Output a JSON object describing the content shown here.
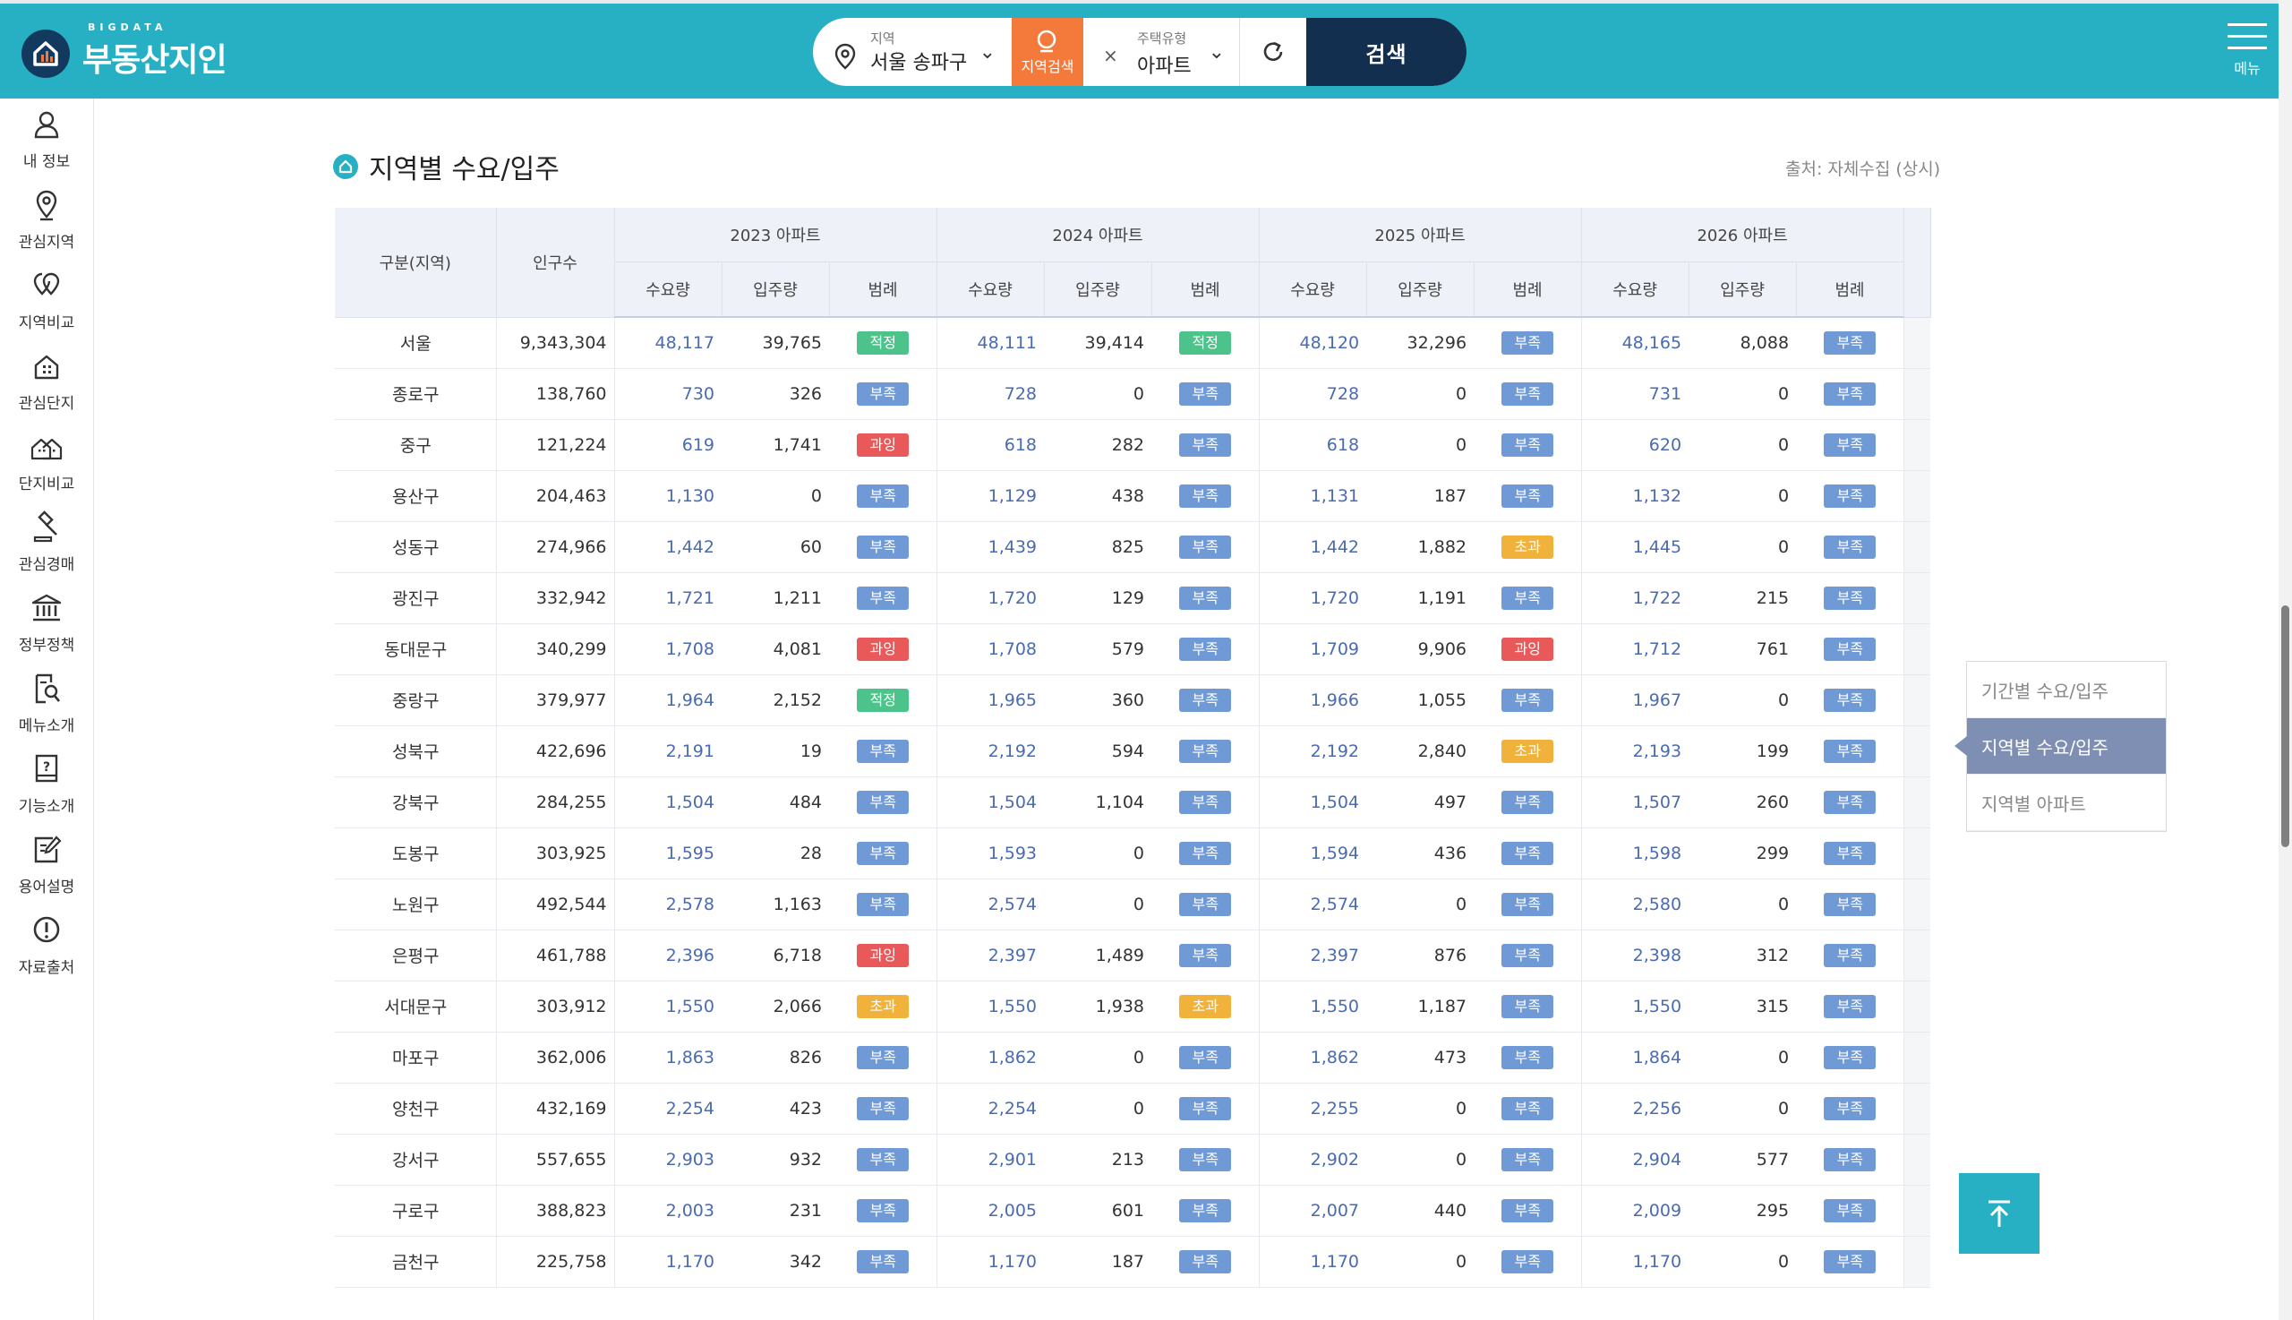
{
  "header": {
    "logo_small": "BIGDATA",
    "logo_main": "부동산지인",
    "search": {
      "region_label": "지역",
      "region_value": "서울 송파구",
      "region_button": "지역검색",
      "type_label": "주택유형",
      "type_value": "아파트",
      "submit_label": "검색"
    },
    "menu_label": "메뉴"
  },
  "sidebar": {
    "items": [
      {
        "label": "내 정보",
        "icon": "user-icon"
      },
      {
        "label": "관심지역",
        "icon": "location-pin-icon"
      },
      {
        "label": "지역비교",
        "icon": "compare-pins-icon"
      },
      {
        "label": "관심단지",
        "icon": "building-icon"
      },
      {
        "label": "단지비교",
        "icon": "buildings-compare-icon"
      },
      {
        "label": "관심경매",
        "icon": "gavel-icon"
      },
      {
        "label": "정부정책",
        "icon": "government-icon"
      },
      {
        "label": "메뉴소개",
        "icon": "document-search-icon"
      },
      {
        "label": "기능소개",
        "icon": "book-icon"
      },
      {
        "label": "용어설명",
        "icon": "edit-icon"
      },
      {
        "label": "자료출처",
        "icon": "info-icon"
      }
    ]
  },
  "page": {
    "title": "지역별 수요/입주",
    "source": "출처: 자체수집 (상시)"
  },
  "table": {
    "col_region": "구분(지역)",
    "col_population": "인구수",
    "years": [
      "2023 아파트",
      "2024 아파트",
      "2025 아파트",
      "2026 아파트"
    ],
    "sub_cols": [
      "수요량",
      "입주량",
      "범례"
    ],
    "rows": [
      {
        "region": "서울",
        "pop": "9,343,304",
        "y": [
          [
            "48,117",
            "39,765",
            "적정"
          ],
          [
            "48,111",
            "39,414",
            "적정"
          ],
          [
            "48,120",
            "32,296",
            "부족"
          ],
          [
            "48,165",
            "8,088",
            "부족"
          ]
        ]
      },
      {
        "region": "종로구",
        "pop": "138,760",
        "y": [
          [
            "730",
            "326",
            "부족"
          ],
          [
            "728",
            "0",
            "부족"
          ],
          [
            "728",
            "0",
            "부족"
          ],
          [
            "731",
            "0",
            "부족"
          ]
        ]
      },
      {
        "region": "중구",
        "pop": "121,224",
        "y": [
          [
            "619",
            "1,741",
            "과잉"
          ],
          [
            "618",
            "282",
            "부족"
          ],
          [
            "618",
            "0",
            "부족"
          ],
          [
            "620",
            "0",
            "부족"
          ]
        ]
      },
      {
        "region": "용산구",
        "pop": "204,463",
        "y": [
          [
            "1,130",
            "0",
            "부족"
          ],
          [
            "1,129",
            "438",
            "부족"
          ],
          [
            "1,131",
            "187",
            "부족"
          ],
          [
            "1,132",
            "0",
            "부족"
          ]
        ]
      },
      {
        "region": "성동구",
        "pop": "274,966",
        "y": [
          [
            "1,442",
            "60",
            "부족"
          ],
          [
            "1,439",
            "825",
            "부족"
          ],
          [
            "1,442",
            "1,882",
            "초과"
          ],
          [
            "1,445",
            "0",
            "부족"
          ]
        ]
      },
      {
        "region": "광진구",
        "pop": "332,942",
        "y": [
          [
            "1,721",
            "1,211",
            "부족"
          ],
          [
            "1,720",
            "129",
            "부족"
          ],
          [
            "1,720",
            "1,191",
            "부족"
          ],
          [
            "1,722",
            "215",
            "부족"
          ]
        ]
      },
      {
        "region": "동대문구",
        "pop": "340,299",
        "y": [
          [
            "1,708",
            "4,081",
            "과잉"
          ],
          [
            "1,708",
            "579",
            "부족"
          ],
          [
            "1,709",
            "9,906",
            "과잉"
          ],
          [
            "1,712",
            "761",
            "부족"
          ]
        ]
      },
      {
        "region": "중랑구",
        "pop": "379,977",
        "y": [
          [
            "1,964",
            "2,152",
            "적정"
          ],
          [
            "1,965",
            "360",
            "부족"
          ],
          [
            "1,966",
            "1,055",
            "부족"
          ],
          [
            "1,967",
            "0",
            "부족"
          ]
        ]
      },
      {
        "region": "성북구",
        "pop": "422,696",
        "y": [
          [
            "2,191",
            "19",
            "부족"
          ],
          [
            "2,192",
            "594",
            "부족"
          ],
          [
            "2,192",
            "2,840",
            "초과"
          ],
          [
            "2,193",
            "199",
            "부족"
          ]
        ]
      },
      {
        "region": "강북구",
        "pop": "284,255",
        "y": [
          [
            "1,504",
            "484",
            "부족"
          ],
          [
            "1,504",
            "1,104",
            "부족"
          ],
          [
            "1,504",
            "497",
            "부족"
          ],
          [
            "1,507",
            "260",
            "부족"
          ]
        ]
      },
      {
        "region": "도봉구",
        "pop": "303,925",
        "y": [
          [
            "1,595",
            "28",
            "부족"
          ],
          [
            "1,593",
            "0",
            "부족"
          ],
          [
            "1,594",
            "436",
            "부족"
          ],
          [
            "1,598",
            "299",
            "부족"
          ]
        ]
      },
      {
        "region": "노원구",
        "pop": "492,544",
        "y": [
          [
            "2,578",
            "1,163",
            "부족"
          ],
          [
            "2,574",
            "0",
            "부족"
          ],
          [
            "2,574",
            "0",
            "부족"
          ],
          [
            "2,580",
            "0",
            "부족"
          ]
        ]
      },
      {
        "region": "은평구",
        "pop": "461,788",
        "y": [
          [
            "2,396",
            "6,718",
            "과잉"
          ],
          [
            "2,397",
            "1,489",
            "부족"
          ],
          [
            "2,397",
            "876",
            "부족"
          ],
          [
            "2,398",
            "312",
            "부족"
          ]
        ]
      },
      {
        "region": "서대문구",
        "pop": "303,912",
        "y": [
          [
            "1,550",
            "2,066",
            "초과"
          ],
          [
            "1,550",
            "1,938",
            "초과"
          ],
          [
            "1,550",
            "1,187",
            "부족"
          ],
          [
            "1,550",
            "315",
            "부족"
          ]
        ]
      },
      {
        "region": "마포구",
        "pop": "362,006",
        "y": [
          [
            "1,863",
            "826",
            "부족"
          ],
          [
            "1,862",
            "0",
            "부족"
          ],
          [
            "1,862",
            "473",
            "부족"
          ],
          [
            "1,864",
            "0",
            "부족"
          ]
        ]
      },
      {
        "region": "양천구",
        "pop": "432,169",
        "y": [
          [
            "2,254",
            "423",
            "부족"
          ],
          [
            "2,254",
            "0",
            "부족"
          ],
          [
            "2,255",
            "0",
            "부족"
          ],
          [
            "2,256",
            "0",
            "부족"
          ]
        ]
      },
      {
        "region": "강서구",
        "pop": "557,655",
        "y": [
          [
            "2,903",
            "932",
            "부족"
          ],
          [
            "2,901",
            "213",
            "부족"
          ],
          [
            "2,902",
            "0",
            "부족"
          ],
          [
            "2,904",
            "577",
            "부족"
          ]
        ]
      },
      {
        "region": "구로구",
        "pop": "388,823",
        "y": [
          [
            "2,003",
            "231",
            "부족"
          ],
          [
            "2,005",
            "601",
            "부족"
          ],
          [
            "2,007",
            "440",
            "부족"
          ],
          [
            "2,009",
            "295",
            "부족"
          ]
        ]
      },
      {
        "region": "금천구",
        "pop": "225,758",
        "y": [
          [
            "1,170",
            "342",
            "부족"
          ],
          [
            "1,170",
            "187",
            "부족"
          ],
          [
            "1,170",
            "0",
            "부족"
          ],
          [
            "1,170",
            "0",
            "부족"
          ]
        ]
      }
    ]
  },
  "legend_colors": {
    "적정": "#4cc38a",
    "부족": "#6f9ad6",
    "과잉": "#e9595a",
    "초과": "#f0b23a"
  },
  "side_nav": {
    "items": [
      "기간별 수요/입주",
      "지역별 수요/입주",
      "지역별 아파트"
    ],
    "active_index": 1
  }
}
